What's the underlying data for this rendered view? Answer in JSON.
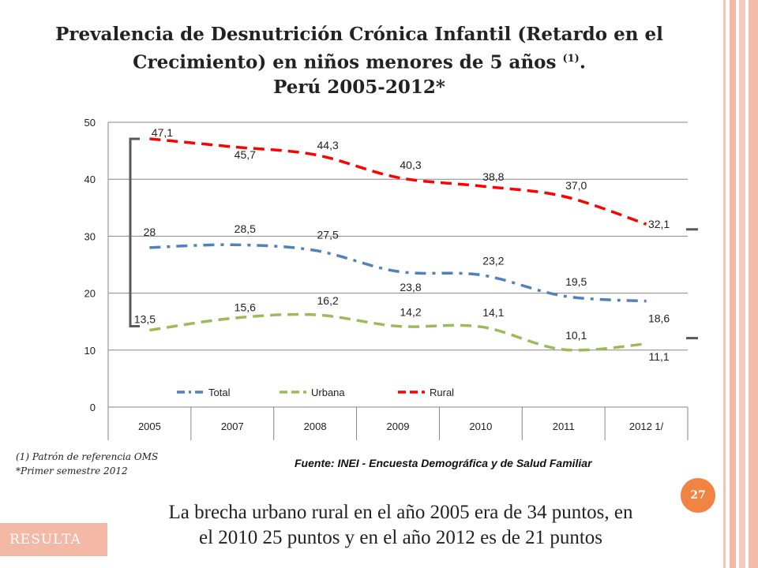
{
  "page": {
    "title_line1": "Prevalencia de Desnutrición Crónica Infantil (Retardo en el",
    "title_line2": "Crecimiento) en niños menores de 5 años",
    "title_sup": "(1)",
    "title_line2_end": ".",
    "title_line3": "Perú 2005-2012*",
    "note_1": "(1)    Patrón de referencia  OMS",
    "note_2": "*Primer semestre 2012",
    "source": "Fuente: INEI - Encuesta Demográfica y de Salud Familiar",
    "slide_number": "27",
    "summary_line1": "La brecha urbano rural en el año 2005 era de 34 puntos, en",
    "summary_line2": "el 2010 25 puntos y en el año 2012 es de 21 puntos",
    "section_tag": "RESULTA"
  },
  "chart_data": {
    "type": "line",
    "title": "",
    "xlabel": "",
    "ylabel": "",
    "categories": [
      "2005",
      "2007",
      "2008",
      "2009",
      "2010",
      "2011",
      "2012 1/"
    ],
    "ylim": [
      0,
      50
    ],
    "yticks": [
      0,
      10,
      20,
      30,
      40,
      50
    ],
    "legend_position": "bottom",
    "series": [
      {
        "name": "Total",
        "color": "#4f81bd",
        "dash": "dash-dot",
        "values": [
          28,
          28.5,
          27.5,
          23.8,
          23.2,
          19.5,
          18.6
        ],
        "labels": [
          "28",
          "28,5",
          "27,5",
          "23,8",
          "23,2",
          "19,5",
          "18,6"
        ]
      },
      {
        "name": "Urbana",
        "color": "#9bbb59",
        "dash": "dash",
        "values": [
          13.5,
          15.6,
          16.2,
          14.2,
          14.1,
          10.1,
          11.1
        ],
        "labels": [
          "13,5",
          "15,6",
          "16,2",
          "14,2",
          "14,1",
          "10,1",
          "11,1"
        ]
      },
      {
        "name": "Rural",
        "color": "#ff0000",
        "dash": "dash",
        "values": [
          47.1,
          45.7,
          44.3,
          40.3,
          38.8,
          37.0,
          32.1
        ],
        "labels": [
          "47,1",
          "45,7",
          "44,3",
          "40,3",
          "38,8",
          "37,0",
          "32,1"
        ]
      }
    ]
  }
}
